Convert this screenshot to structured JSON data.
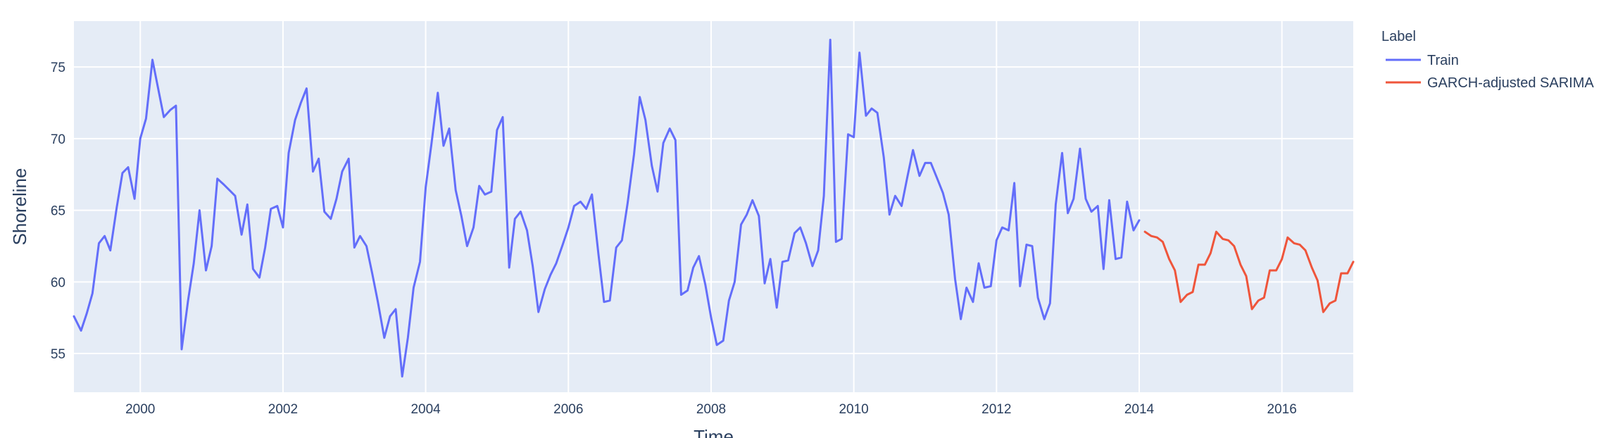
{
  "chart_data": {
    "type": "line",
    "xlabel": "Time",
    "ylabel": "Shoreline",
    "xlim": [
      1999.07,
      2017.0
    ],
    "ylim": [
      52.3,
      78.2
    ],
    "x_ticks": [
      2000,
      2002,
      2004,
      2006,
      2008,
      2010,
      2012,
      2014,
      2016
    ],
    "x_tick_labels": [
      "2000",
      "2002",
      "2004",
      "2006",
      "2008",
      "2010",
      "2012",
      "2014",
      "2016"
    ],
    "y_ticks": [
      55,
      60,
      65,
      70,
      75
    ],
    "y_tick_labels": [
      "55",
      "60",
      "65",
      "70",
      "75"
    ],
    "grid": true,
    "legend": {
      "title": "Label",
      "position": "top-right-outside"
    },
    "series": [
      {
        "name": "Train",
        "color": "#636efa",
        "x": [
          1999.07,
          1999.17,
          1999.25,
          1999.33,
          1999.42,
          1999.5,
          1999.58,
          1999.67,
          1999.75,
          1999.83,
          1999.92,
          2000.0,
          2000.08,
          2000.17,
          2000.25,
          2000.33,
          2000.42,
          2000.5,
          2000.58,
          2000.67,
          2000.75,
          2000.83,
          2000.92,
          2001.0,
          2001.08,
          2001.17,
          2001.25,
          2001.33,
          2001.42,
          2001.5,
          2001.58,
          2001.67,
          2001.75,
          2001.83,
          2001.92,
          2002.0,
          2002.08,
          2002.17,
          2002.25,
          2002.33,
          2002.42,
          2002.5,
          2002.58,
          2002.67,
          2002.75,
          2002.83,
          2002.92,
          2003.0,
          2003.08,
          2003.17,
          2003.25,
          2003.33,
          2003.42,
          2003.5,
          2003.58,
          2003.67,
          2003.75,
          2003.83,
          2003.92,
          2004.0,
          2004.08,
          2004.17,
          2004.25,
          2004.33,
          2004.42,
          2004.5,
          2004.58,
          2004.67,
          2004.75,
          2004.83,
          2004.92,
          2005.0,
          2005.08,
          2005.17,
          2005.25,
          2005.33,
          2005.42,
          2005.5,
          2005.58,
          2005.67,
          2005.75,
          2005.83,
          2005.92,
          2006.0,
          2006.08,
          2006.17,
          2006.25,
          2006.33,
          2006.42,
          2006.5,
          2006.58,
          2006.67,
          2006.75,
          2006.83,
          2006.92,
          2007.0,
          2007.08,
          2007.17,
          2007.25,
          2007.33,
          2007.42,
          2007.5,
          2007.58,
          2007.67,
          2007.75,
          2007.83,
          2007.92,
          2008.0,
          2008.08,
          2008.17,
          2008.25,
          2008.33,
          2008.42,
          2008.5,
          2008.58,
          2008.67,
          2008.75,
          2008.83,
          2008.92,
          2009.0,
          2009.08,
          2009.17,
          2009.25,
          2009.33,
          2009.42,
          2009.5,
          2009.58,
          2009.67,
          2009.75,
          2009.83,
          2009.92,
          2010.0,
          2010.08,
          2010.17,
          2010.25,
          2010.33,
          2010.42,
          2010.5,
          2010.58,
          2010.67,
          2010.75,
          2010.83,
          2010.92,
          2011.0,
          2011.08,
          2011.17,
          2011.25,
          2011.33,
          2011.42,
          2011.5,
          2011.58,
          2011.67,
          2011.75,
          2011.83,
          2011.92,
          2012.0,
          2012.08,
          2012.17,
          2012.25,
          2012.33,
          2012.42,
          2012.5,
          2012.58,
          2012.67,
          2012.75,
          2012.83,
          2012.92,
          2013.0,
          2013.08,
          2013.17,
          2013.25,
          2013.33,
          2013.42,
          2013.5,
          2013.58,
          2013.67,
          2013.75,
          2013.83,
          2013.92,
          2014.0
        ],
        "values": [
          57.6,
          56.6,
          57.8,
          59.2,
          62.7,
          63.2,
          62.2,
          65.2,
          67.6,
          68.0,
          65.8,
          70.0,
          71.4,
          75.5,
          73.5,
          71.5,
          72.0,
          72.3,
          55.3,
          58.7,
          61.3,
          65.0,
          60.8,
          62.5,
          67.2,
          66.8,
          66.4,
          66.0,
          63.3,
          65.4,
          60.9,
          60.3,
          62.4,
          65.1,
          65.3,
          63.8,
          69.0,
          71.3,
          72.5,
          73.5,
          67.7,
          68.6,
          64.9,
          64.4,
          65.8,
          67.7,
          68.6,
          62.4,
          63.2,
          62.5,
          60.6,
          58.6,
          56.1,
          57.6,
          58.1,
          53.4,
          56.1,
          59.6,
          61.4,
          66.6,
          69.6,
          73.2,
          69.5,
          70.7,
          66.4,
          64.6,
          62.5,
          63.8,
          66.7,
          66.1,
          66.3,
          70.6,
          71.5,
          61.0,
          64.4,
          64.9,
          63.6,
          61.1,
          57.9,
          59.5,
          60.5,
          61.3,
          62.6,
          63.8,
          65.3,
          65.6,
          65.1,
          66.1,
          62.0,
          58.6,
          58.7,
          62.4,
          62.9,
          65.5,
          68.9,
          72.9,
          71.3,
          68.1,
          66.3,
          69.7,
          70.7,
          69.9,
          59.1,
          59.4,
          61.0,
          61.8,
          59.8,
          57.5,
          55.6,
          55.9,
          58.7,
          60.0,
          64.0,
          64.7,
          65.7,
          64.6,
          59.9,
          61.6,
          58.2,
          61.4,
          61.5,
          63.4,
          63.8,
          62.7,
          61.1,
          62.2,
          66.0,
          76.9,
          62.8,
          63.0,
          70.3,
          70.1,
          76.0,
          71.6,
          72.1,
          71.8,
          68.7,
          64.7,
          66.0,
          65.3,
          67.3,
          69.2,
          67.4,
          68.3,
          68.3,
          67.2,
          66.2,
          64.7,
          60.2,
          57.4,
          59.6,
          58.6,
          61.3,
          59.6,
          59.7,
          62.9,
          63.8,
          63.6,
          66.9,
          59.7,
          62.6,
          62.5,
          58.9,
          57.4,
          58.5,
          65.4,
          69.0,
          64.8,
          65.8,
          69.3,
          65.8,
          64.9,
          65.3,
          60.9,
          65.7,
          61.6,
          61.7,
          65.6,
          63.6,
          64.3
        ]
      },
      {
        "name": "GARCH-adjusted SARIMA",
        "color": "#ef553b",
        "x": [
          2014.08,
          2014.17,
          2014.25,
          2014.33,
          2014.42,
          2014.5,
          2014.58,
          2014.67,
          2014.75,
          2014.83,
          2014.92,
          2015.0,
          2015.08,
          2015.17,
          2015.25,
          2015.33,
          2015.42,
          2015.5,
          2015.58,
          2015.67,
          2015.75,
          2015.83,
          2015.92,
          2016.0,
          2016.08,
          2016.17,
          2016.25,
          2016.33,
          2016.42,
          2016.5,
          2016.58,
          2016.67,
          2016.75,
          2016.83,
          2016.92,
          2017.0
        ],
        "values": [
          63.5,
          63.2,
          63.1,
          62.8,
          61.6,
          60.8,
          58.6,
          59.1,
          59.3,
          61.2,
          61.2,
          62.0,
          63.5,
          63.0,
          62.9,
          62.5,
          61.2,
          60.4,
          58.1,
          58.7,
          58.9,
          60.8,
          60.8,
          61.6,
          63.1,
          62.7,
          62.6,
          62.2,
          61.0,
          60.1,
          57.9,
          58.5,
          58.7,
          60.6,
          60.6,
          61.4
        ]
      }
    ]
  }
}
